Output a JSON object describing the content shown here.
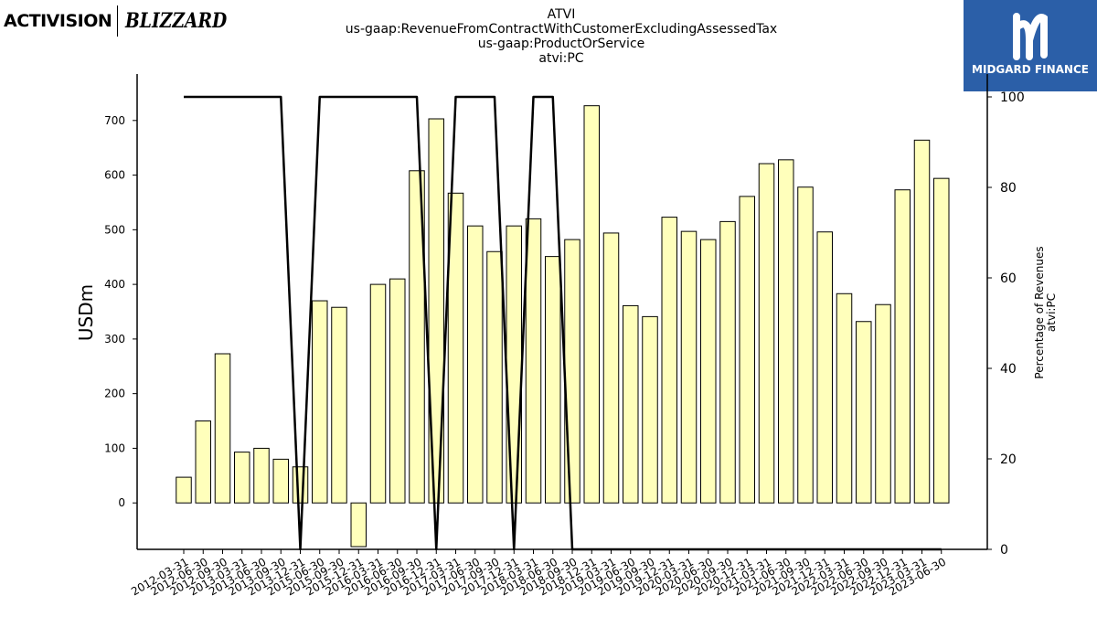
{
  "logos": {
    "left_primary": "ACTIVISION",
    "left_secondary": "BLIZZARD",
    "right_text": "MIDGARD FINANCE",
    "right_bg_color": "#2b5fa8"
  },
  "chart_data": {
    "type": "bar",
    "title_lines": [
      "ATVI",
      "us-gaap:RevenueFromContractWithCustomerExcludingAssessedTax",
      "us-gaap:ProductOrService",
      "atvi:PC"
    ],
    "ylabel": "USDm",
    "ylabel_right_lines": [
      "Percentage of Revenues",
      "atvi:PC"
    ],
    "categories": [
      "2012-03-31",
      "2012-06-30",
      "2012-09-30",
      "2013-03-31",
      "2013-06-30",
      "2013-09-30",
      "2013-12-31",
      "2015-06-30",
      "2015-09-30",
      "2015-12-31",
      "2016-03-31",
      "2016-06-30",
      "2016-09-30",
      "2016-12-31",
      "2017-03-31",
      "2017-06-30",
      "2017-09-30",
      "2017-12-31",
      "2018-03-31",
      "2018-06-30",
      "2018-09-30",
      "2018-12-31",
      "2019-03-31",
      "2019-06-30",
      "2019-09-30",
      "2019-12-31",
      "2020-03-31",
      "2020-06-30",
      "2020-09-30",
      "2020-12-31",
      "2021-03-31",
      "2021-06-30",
      "2021-09-30",
      "2021-12-31",
      "2022-03-31",
      "2022-06-30",
      "2022-09-30",
      "2022-12-31",
      "2023-03-31",
      "2023-06-30"
    ],
    "series": [
      {
        "axis": "left",
        "kind": "bar",
        "values": [
          47,
          150,
          273,
          93,
          100,
          80,
          66,
          370,
          358,
          -80,
          400,
          410,
          608,
          703,
          567,
          507,
          460,
          507,
          520,
          451,
          482,
          727,
          494,
          361,
          341,
          523,
          497,
          482,
          515,
          561,
          621,
          628,
          578,
          496,
          383,
          332,
          363,
          573,
          664,
          594
        ]
      },
      {
        "axis": "right",
        "kind": "line",
        "values": [
          100,
          100,
          100,
          100,
          100,
          100,
          0,
          100,
          100,
          null,
          100,
          100,
          100,
          0,
          100,
          100,
          100,
          0,
          100,
          100,
          0,
          0,
          0,
          0,
          0,
          0,
          0,
          0,
          0,
          0,
          0,
          0,
          0,
          0,
          0,
          0,
          0,
          0,
          0,
          0
        ]
      }
    ],
    "ylim_left": [
      -85,
      785
    ],
    "yticks_left": [
      0,
      100,
      200,
      300,
      400,
      500,
      600,
      700
    ],
    "ylim_right": [
      0,
      100
    ],
    "yticks_right": [
      0,
      20,
      40,
      60,
      80,
      100
    ],
    "bar_color": "#ffffbb",
    "bar_edge_color": "#000000",
    "line_color": "#000000",
    "grid": false,
    "legend": "none"
  }
}
